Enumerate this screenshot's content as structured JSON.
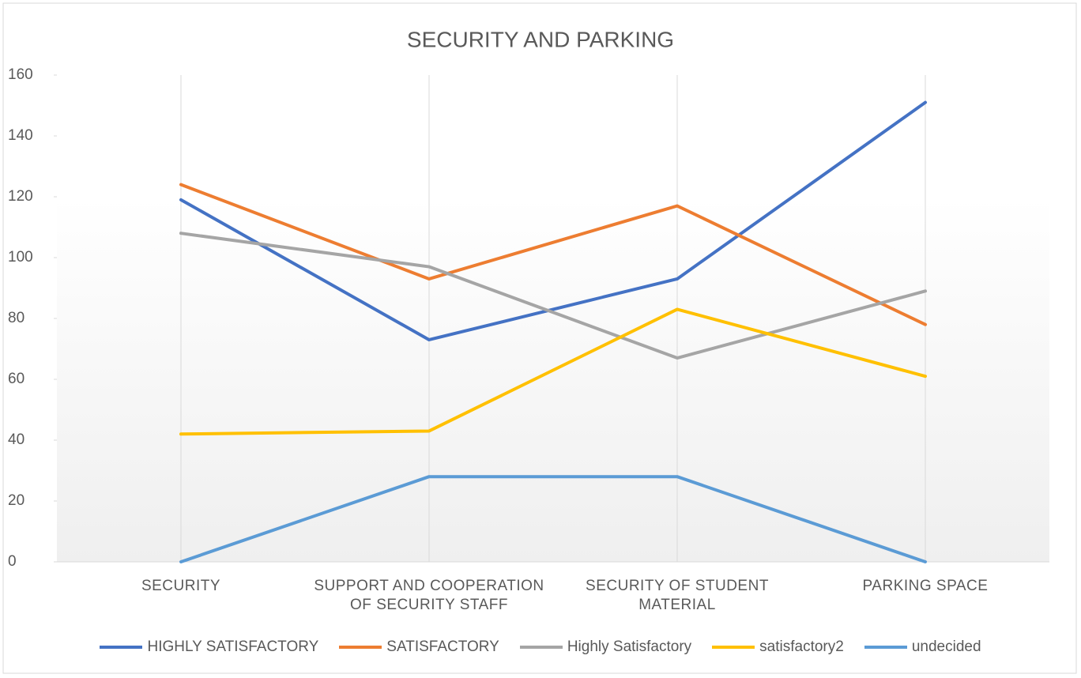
{
  "chart_data": {
    "type": "line",
    "title": "SECURITY AND PARKING",
    "categories": [
      "SECURITY",
      "SUPPORT AND COOPERATION OF SECURITY STAFF",
      "SECURITY OF STUDENT MATERIAL",
      "PARKING SPACE"
    ],
    "series": [
      {
        "name": "HIGHLY SATISFACTORY",
        "color": "#4472c4",
        "values": [
          119,
          73,
          93,
          151
        ]
      },
      {
        "name": "SATISFACTORY",
        "color": "#ed7d31",
        "values": [
          124,
          93,
          117,
          78
        ]
      },
      {
        "name": "Highly Satisfactory",
        "color": "#a5a5a5",
        "values": [
          108,
          97,
          67,
          89
        ]
      },
      {
        "name": "satisfactory2",
        "color": "#ffc000",
        "values": [
          42,
          43,
          83,
          61
        ]
      },
      {
        "name": "undecided",
        "color": "#5b9bd5",
        "values": [
          0,
          28,
          28,
          0
        ]
      }
    ],
    "ylim": [
      0,
      160
    ],
    "yticks": [
      0,
      20,
      40,
      60,
      80,
      100,
      120,
      140,
      160
    ],
    "legend": "bottom"
  }
}
